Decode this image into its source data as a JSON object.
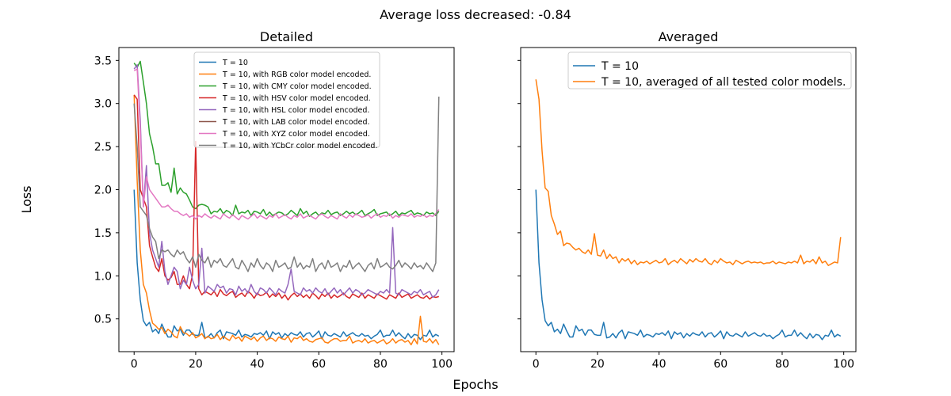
{
  "suptitle": "Average loss decreased: -0.84",
  "xlabel": "Epochs",
  "ylabel": "Loss",
  "chart_data": [
    {
      "type": "line",
      "title": "Detailed",
      "xlim": [
        -4.95,
        103.95
      ],
      "ylim": [
        0.12,
        3.65
      ],
      "xticks": [
        0,
        20,
        40,
        60,
        80,
        100
      ],
      "yticks": [
        0.5,
        1.0,
        1.5,
        2.0,
        2.5,
        3.0,
        3.5
      ],
      "legend_position": "upper-center",
      "x_start": 0,
      "series": [
        {
          "name": "T = 10",
          "color": "#1f77b4",
          "values": [
            2.0,
            1.15,
            0.72,
            0.48,
            0.42,
            0.46,
            0.35,
            0.38,
            0.33,
            0.44,
            0.36,
            0.29,
            0.29,
            0.42,
            0.36,
            0.38,
            0.31,
            0.37,
            0.37,
            0.32,
            0.31,
            0.31,
            0.46,
            0.28,
            0.29,
            0.33,
            0.28,
            0.34,
            0.37,
            0.27,
            0.35,
            0.34,
            0.33,
            0.31,
            0.37,
            0.29,
            0.32,
            0.31,
            0.29,
            0.33,
            0.32,
            0.34,
            0.31,
            0.36,
            0.27,
            0.35,
            0.32,
            0.34,
            0.28,
            0.33,
            0.3,
            0.34,
            0.32,
            0.31,
            0.35,
            0.29,
            0.33,
            0.34,
            0.29,
            0.32,
            0.36,
            0.27,
            0.35,
            0.31,
            0.3,
            0.33,
            0.31,
            0.29,
            0.35,
            0.3,
            0.32,
            0.34,
            0.31,
            0.3,
            0.33,
            0.3,
            0.31,
            0.27,
            0.3,
            0.32,
            0.37,
            0.29,
            0.31,
            0.31,
            0.37,
            0.3,
            0.34,
            0.3,
            0.27,
            0.33,
            0.28,
            0.32,
            0.31,
            0.26,
            0.31,
            0.3,
            0.37,
            0.29,
            0.32,
            0.3
          ]
        },
        {
          "name": "T = 10, with RGB color model encoded.",
          "color": "#ff7f0e",
          "values": [
            3.1,
            2.1,
            1.3,
            0.9,
            0.8,
            0.6,
            0.45,
            0.42,
            0.38,
            0.4,
            0.33,
            0.38,
            0.35,
            0.3,
            0.28,
            0.41,
            0.34,
            0.33,
            0.3,
            0.34,
            0.28,
            0.3,
            0.33,
            0.27,
            0.3,
            0.27,
            0.28,
            0.32,
            0.26,
            0.3,
            0.27,
            0.25,
            0.31,
            0.27,
            0.29,
            0.24,
            0.3,
            0.28,
            0.26,
            0.29,
            0.24,
            0.28,
            0.3,
            0.25,
            0.28,
            0.27,
            0.24,
            0.29,
            0.27,
            0.26,
            0.3,
            0.23,
            0.28,
            0.27,
            0.3,
            0.25,
            0.27,
            0.24,
            0.23,
            0.26,
            0.27,
            0.28,
            0.23,
            0.22,
            0.25,
            0.27,
            0.27,
            0.24,
            0.25,
            0.25,
            0.3,
            0.22,
            0.24,
            0.25,
            0.23,
            0.27,
            0.22,
            0.24,
            0.25,
            0.22,
            0.24,
            0.26,
            0.21,
            0.23,
            0.27,
            0.22,
            0.25,
            0.26,
            0.23,
            0.25,
            0.2,
            0.27,
            0.21,
            0.53,
            0.24,
            0.23,
            0.27,
            0.22,
            0.26,
            0.2
          ]
        },
        {
          "name": "T = 10, with CMY color model encoded.",
          "color": "#2ca02c",
          "values": [
            3.47,
            3.42,
            3.49,
            3.25,
            3.0,
            2.65,
            2.5,
            2.3,
            2.3,
            2.05,
            2.05,
            2.08,
            1.97,
            2.25,
            1.95,
            2.02,
            1.97,
            1.95,
            1.88,
            1.8,
            1.78,
            1.82,
            1.83,
            1.82,
            1.8,
            1.72,
            1.75,
            1.74,
            1.78,
            1.72,
            1.76,
            1.74,
            1.7,
            1.82,
            1.72,
            1.74,
            1.73,
            1.76,
            1.7,
            1.75,
            1.74,
            1.72,
            1.77,
            1.7,
            1.74,
            1.7,
            1.72,
            1.74,
            1.73,
            1.7,
            1.72,
            1.76,
            1.73,
            1.7,
            1.78,
            1.72,
            1.75,
            1.69,
            1.72,
            1.74,
            1.7,
            1.73,
            1.72,
            1.76,
            1.71,
            1.73,
            1.74,
            1.7,
            1.72,
            1.75,
            1.72,
            1.74,
            1.71,
            1.73,
            1.76,
            1.7,
            1.72,
            1.74,
            1.77,
            1.7,
            1.72,
            1.73,
            1.74,
            1.7,
            1.72,
            1.75,
            1.7,
            1.73,
            1.72,
            1.74,
            1.76,
            1.71,
            1.73,
            1.72,
            1.7,
            1.74,
            1.72,
            1.73,
            1.7,
            1.75
          ]
        },
        {
          "name": "T = 10, with HSV color model encoded.",
          "color": "#d62728",
          "values": [
            3.1,
            3.05,
            2.0,
            1.9,
            1.8,
            1.35,
            1.22,
            1.1,
            1.05,
            1.2,
            1.0,
            0.95,
            0.98,
            1.05,
            0.9,
            0.9,
            1.0,
            0.9,
            0.85,
            1.02,
            2.56,
            0.85,
            0.78,
            0.82,
            0.8,
            0.78,
            0.82,
            0.76,
            0.84,
            0.79,
            0.77,
            0.8,
            0.82,
            0.75,
            0.78,
            0.8,
            0.76,
            0.82,
            0.79,
            0.74,
            0.8,
            0.77,
            0.78,
            0.81,
            0.75,
            0.79,
            0.76,
            0.8,
            0.74,
            0.78,
            0.72,
            0.77,
            0.8,
            0.76,
            0.79,
            0.75,
            0.78,
            0.74,
            0.8,
            0.77,
            0.73,
            0.79,
            0.76,
            0.8,
            0.74,
            0.78,
            0.75,
            0.77,
            0.8,
            0.76,
            0.74,
            0.79,
            0.77,
            0.75,
            0.8,
            0.74,
            0.78,
            0.76,
            0.74,
            0.79,
            0.77,
            0.75,
            0.73,
            0.78,
            0.76,
            0.74,
            0.8,
            0.75,
            0.77,
            0.79,
            0.74,
            0.76,
            0.78,
            0.75,
            0.74,
            0.77,
            0.73,
            0.76,
            0.75,
            0.76
          ]
        },
        {
          "name": "T = 10, with HSL color model encoded.",
          "color": "#9467bd",
          "values": [
            3.4,
            3.45,
            2.8,
            1.8,
            2.28,
            1.5,
            1.3,
            1.2,
            1.1,
            1.4,
            1.05,
            0.9,
            1.0,
            1.1,
            1.05,
            0.85,
            0.95,
            0.9,
            1.1,
            0.95,
            0.85,
            0.9,
            1.32,
            0.8,
            0.88,
            0.85,
            0.82,
            0.9,
            0.86,
            0.88,
            0.8,
            0.85,
            0.84,
            0.78,
            0.88,
            0.82,
            0.85,
            0.8,
            0.9,
            0.82,
            0.78,
            0.86,
            0.84,
            0.8,
            0.86,
            0.82,
            0.78,
            0.85,
            0.82,
            0.8,
            0.9,
            1.08,
            0.82,
            0.8,
            0.78,
            0.86,
            0.82,
            0.84,
            0.8,
            0.86,
            0.82,
            0.8,
            0.85,
            0.78,
            0.82,
            0.86,
            0.8,
            0.84,
            0.78,
            0.82,
            0.86,
            0.8,
            0.84,
            0.82,
            0.78,
            0.8,
            0.84,
            0.82,
            0.8,
            0.78,
            0.82,
            0.8,
            0.84,
            0.8,
            1.56,
            0.8,
            0.78,
            0.84,
            0.82,
            0.8,
            0.78,
            0.82,
            0.8,
            0.84,
            0.78,
            0.8,
            0.82,
            0.75,
            0.78,
            0.84
          ]
        },
        {
          "name": "T = 10, with LAB color model encoded.",
          "color": "#8c564b",
          "values": []
        },
        {
          "name": "T = 10, with XYZ color model encoded.",
          "color": "#e377c2",
          "values": [
            3.38,
            3.4,
            2.7,
            1.8,
            2.15,
            2.0,
            1.95,
            1.9,
            1.85,
            1.8,
            1.8,
            1.82,
            1.78,
            1.75,
            1.75,
            1.72,
            1.7,
            1.72,
            1.68,
            1.7,
            1.66,
            1.7,
            1.68,
            1.72,
            1.69,
            1.67,
            1.7,
            1.68,
            1.66,
            1.72,
            1.69,
            1.67,
            1.71,
            1.68,
            1.65,
            1.7,
            1.68,
            1.66,
            1.69,
            1.72,
            1.67,
            1.7,
            1.68,
            1.66,
            1.7,
            1.68,
            1.72,
            1.67,
            1.69,
            1.71,
            1.68,
            1.66,
            1.7,
            1.68,
            1.72,
            1.67,
            1.69,
            1.7,
            1.68,
            1.66,
            1.7,
            1.72,
            1.69,
            1.67,
            1.7,
            1.68,
            1.66,
            1.72,
            1.69,
            1.67,
            1.71,
            1.68,
            1.72,
            1.7,
            1.68,
            1.69,
            1.71,
            1.67,
            1.7,
            1.72,
            1.68,
            1.7,
            1.69,
            1.72,
            1.67,
            1.7,
            1.68,
            1.71,
            1.7,
            1.69,
            1.72,
            1.68,
            1.7,
            1.69,
            1.71,
            1.68,
            1.7,
            1.69,
            1.72,
            1.77
          ]
        },
        {
          "name": "T = 10, with YCbCr color model encoded.",
          "color": "#7f7f7f",
          "values": [
            3.0,
            2.5,
            1.8,
            1.75,
            1.7,
            1.55,
            1.45,
            1.4,
            1.2,
            1.3,
            1.28,
            1.3,
            1.25,
            1.22,
            1.3,
            1.25,
            1.28,
            1.2,
            1.15,
            1.22,
            1.1,
            1.25,
            1.18,
            1.15,
            1.22,
            1.1,
            1.18,
            1.15,
            1.2,
            1.12,
            1.1,
            1.15,
            1.2,
            1.1,
            1.08,
            1.18,
            1.12,
            1.05,
            1.15,
            1.1,
            1.2,
            1.12,
            1.08,
            1.15,
            1.12,
            1.05,
            1.18,
            1.1,
            1.12,
            1.15,
            1.08,
            1.1,
            1.22,
            1.1,
            1.15,
            1.08,
            1.12,
            1.1,
            1.2,
            1.05,
            1.12,
            1.15,
            1.08,
            1.18,
            1.1,
            1.12,
            1.15,
            1.05,
            1.12,
            1.1,
            1.18,
            1.08,
            1.12,
            1.15,
            1.1,
            1.05,
            1.12,
            1.15,
            1.08,
            1.2,
            1.1,
            1.12,
            1.15,
            1.1,
            1.08,
            1.12,
            1.18,
            1.1,
            1.15,
            1.12,
            1.08,
            1.15,
            1.1,
            1.12,
            1.08,
            1.15,
            1.1,
            1.05,
            1.15,
            3.08
          ]
        }
      ]
    },
    {
      "type": "line",
      "title": "Averaged",
      "xlim": [
        -4.95,
        103.95
      ],
      "ylim": [
        0.12,
        3.65
      ],
      "xticks": [
        0,
        20,
        40,
        60,
        80,
        100
      ],
      "yticks": [
        0.5,
        1.0,
        1.5,
        2.0,
        2.5,
        3.0,
        3.5
      ],
      "legend_position": "upper-right",
      "x_start": 0,
      "series": [
        {
          "name": "T = 10",
          "color": "#1f77b4",
          "values": [
            2.0,
            1.15,
            0.72,
            0.48,
            0.42,
            0.46,
            0.35,
            0.38,
            0.33,
            0.44,
            0.36,
            0.29,
            0.29,
            0.42,
            0.36,
            0.38,
            0.31,
            0.37,
            0.37,
            0.32,
            0.31,
            0.31,
            0.46,
            0.28,
            0.29,
            0.33,
            0.28,
            0.34,
            0.37,
            0.27,
            0.35,
            0.34,
            0.33,
            0.31,
            0.37,
            0.29,
            0.32,
            0.31,
            0.29,
            0.33,
            0.32,
            0.34,
            0.31,
            0.36,
            0.27,
            0.35,
            0.32,
            0.34,
            0.28,
            0.33,
            0.3,
            0.34,
            0.32,
            0.31,
            0.35,
            0.29,
            0.33,
            0.34,
            0.29,
            0.32,
            0.36,
            0.27,
            0.35,
            0.31,
            0.3,
            0.33,
            0.31,
            0.29,
            0.35,
            0.3,
            0.32,
            0.34,
            0.31,
            0.3,
            0.33,
            0.3,
            0.31,
            0.27,
            0.3,
            0.32,
            0.37,
            0.29,
            0.31,
            0.31,
            0.37,
            0.3,
            0.34,
            0.3,
            0.27,
            0.33,
            0.28,
            0.32,
            0.31,
            0.26,
            0.31,
            0.3,
            0.37,
            0.29,
            0.32,
            0.3
          ]
        },
        {
          "name": "T = 10, averaged of all tested color models.",
          "color": "#ff7f0e",
          "values": [
            3.28,
            3.05,
            2.45,
            2.02,
            1.98,
            1.7,
            1.6,
            1.48,
            1.52,
            1.35,
            1.38,
            1.37,
            1.33,
            1.3,
            1.32,
            1.28,
            1.26,
            1.3,
            1.25,
            1.49,
            1.24,
            1.23,
            1.3,
            1.2,
            1.25,
            1.2,
            1.22,
            1.15,
            1.2,
            1.17,
            1.2,
            1.14,
            1.18,
            1.13,
            1.16,
            1.15,
            1.17,
            1.14,
            1.16,
            1.18,
            1.15,
            1.16,
            1.2,
            1.13,
            1.16,
            1.18,
            1.15,
            1.2,
            1.17,
            1.14,
            1.19,
            1.16,
            1.2,
            1.17,
            1.16,
            1.2,
            1.15,
            1.13,
            1.18,
            1.15,
            1.2,
            1.17,
            1.15,
            1.16,
            1.13,
            1.18,
            1.16,
            1.14,
            1.16,
            1.17,
            1.15,
            1.16,
            1.15,
            1.16,
            1.14,
            1.15,
            1.15,
            1.17,
            1.14,
            1.16,
            1.15,
            1.14,
            1.16,
            1.15,
            1.17,
            1.15,
            1.24,
            1.14,
            1.17,
            1.16,
            1.19,
            1.14,
            1.22,
            1.15,
            1.17,
            1.12,
            1.14,
            1.16,
            1.15,
            1.45
          ]
        }
      ]
    }
  ]
}
